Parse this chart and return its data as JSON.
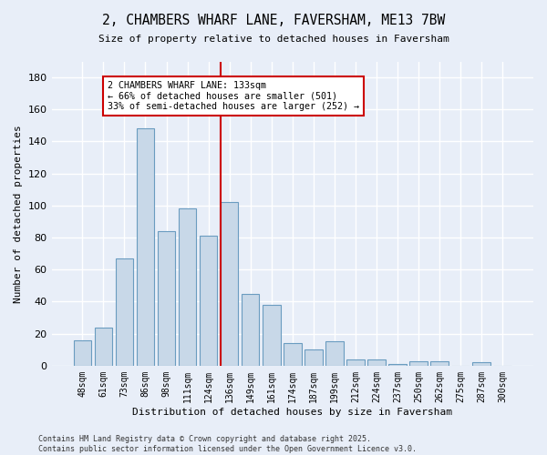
{
  "title": "2, CHAMBERS WHARF LANE, FAVERSHAM, ME13 7BW",
  "subtitle": "Size of property relative to detached houses in Faversham",
  "xlabel": "Distribution of detached houses by size in Faversham",
  "ylabel": "Number of detached properties",
  "bin_labels": [
    "48sqm",
    "61sqm",
    "73sqm",
    "86sqm",
    "98sqm",
    "111sqm",
    "124sqm",
    "136sqm",
    "149sqm",
    "161sqm",
    "174sqm",
    "187sqm",
    "199sqm",
    "212sqm",
    "224sqm",
    "237sqm",
    "250sqm",
    "262sqm",
    "275sqm",
    "287sqm",
    "300sqm"
  ],
  "bar_values": [
    16,
    24,
    67,
    148,
    84,
    98,
    81,
    102,
    45,
    38,
    14,
    10,
    15,
    4,
    4,
    1,
    3,
    3,
    0,
    2,
    0
  ],
  "bar_color": "#c8d8e8",
  "bar_edge_color": "#6a9cc0",
  "annotation_text": "2 CHAMBERS WHARF LANE: 133sqm\n← 66% of detached houses are smaller (501)\n33% of semi-detached houses are larger (252) →",
  "annotation_box_color": "#ffffff",
  "annotation_box_edge_color": "#cc0000",
  "footer_text": "Contains HM Land Registry data © Crown copyright and database right 2025.\nContains public sector information licensed under the Open Government Licence v3.0.",
  "ylim": [
    0,
    190
  ],
  "yticks": [
    0,
    20,
    40,
    60,
    80,
    100,
    120,
    140,
    160,
    180
  ],
  "fig_width": 6.0,
  "fig_height": 5.0,
  "background_color": "#e8eef8"
}
